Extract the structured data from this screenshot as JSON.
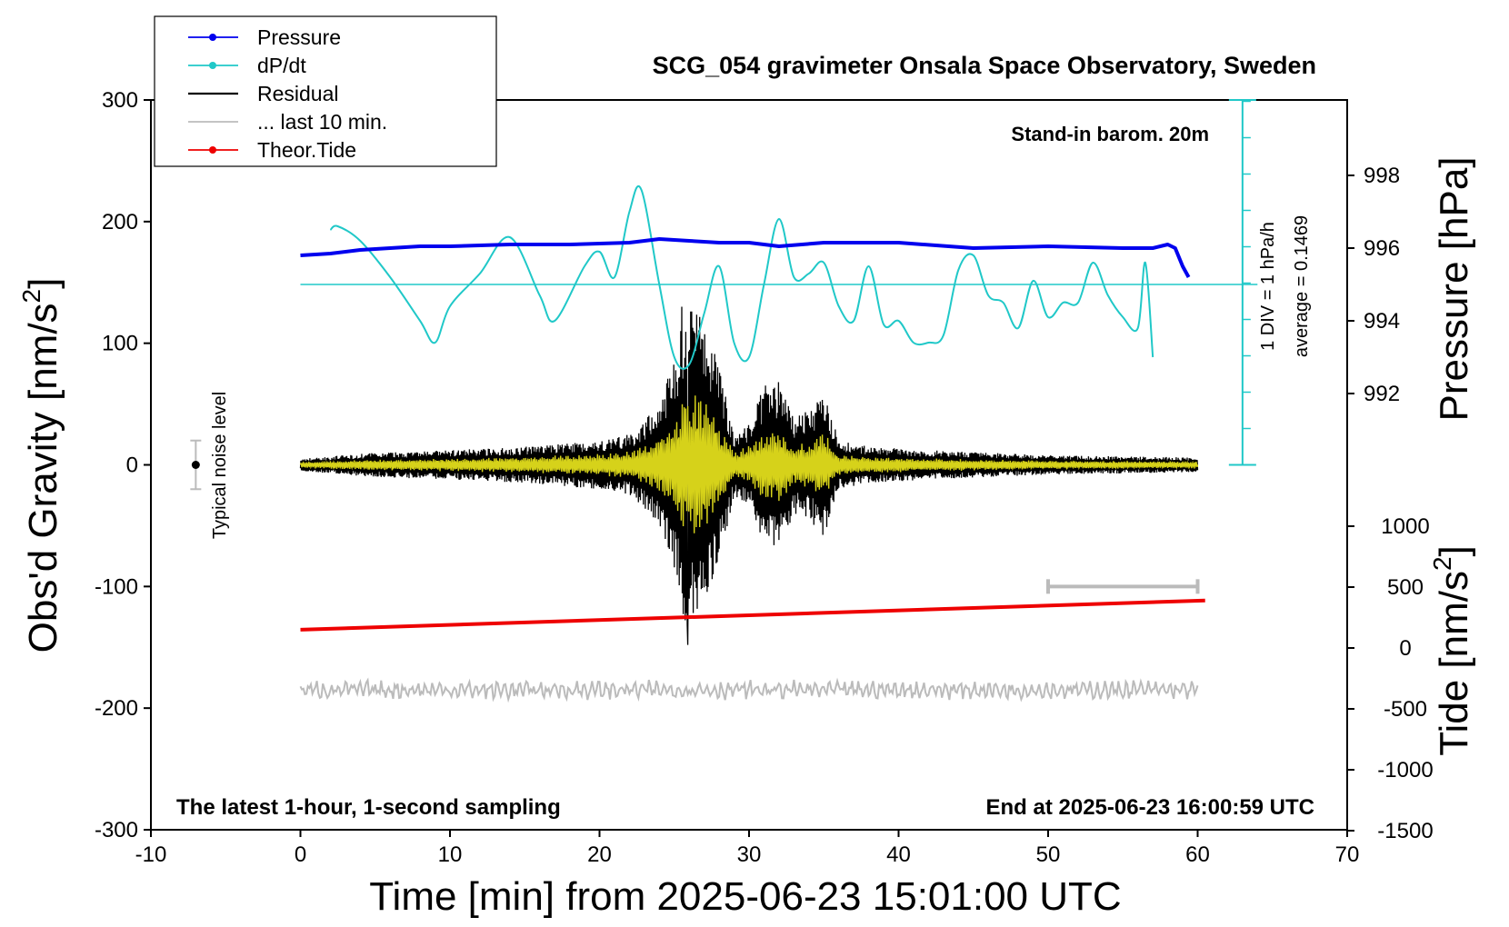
{
  "chart_data": {
    "type": "line",
    "title": "SCG_054 gravimeter Onsala Space Observatory, Sweden",
    "xlabel": "Time [min] from 2025-06-23 15:01:00 UTC",
    "ylabel_left": "Obs'd Gravity [nm/s",
    "ylabel_left_sup": "2",
    "ylabel_left_end": "]",
    "ylabel_right_pressure": "Pressure [hPa]",
    "ylabel_right_tide": "Tide [nm/s",
    "ylabel_right_tide_sup": "2",
    "ylabel_right_tide_end": "]",
    "xlim": [
      -10,
      70
    ],
    "ylim": [
      -300,
      300
    ],
    "x_ticks": [
      "-10",
      "0",
      "10",
      "20",
      "30",
      "40",
      "50",
      "60",
      "70"
    ],
    "y_ticks": [
      "-300",
      "-200",
      "-100",
      "0",
      "100",
      "200",
      "300"
    ],
    "pressure_ticks": [
      "992",
      "994",
      "996",
      "998"
    ],
    "tide_ticks": [
      "-1500",
      "-1000",
      "-500",
      "0",
      "500",
      "1000"
    ],
    "legend": [
      {
        "label": "Pressure",
        "color": "#0000ee",
        "marker": true
      },
      {
        "label": "dP/dt",
        "color": "#20c8c8",
        "marker": true
      },
      {
        "label": "Residual",
        "color": "#000000",
        "marker": false
      },
      {
        "label": "... last 10 min.",
        "color": "#bbbbbb",
        "marker": false
      },
      {
        "label": "Theor.Tide",
        "color": "#ee0000",
        "marker": true
      }
    ],
    "annotations": {
      "barometer": "Stand-in barom. 20m",
      "latest": "The latest 1-hour, 1-second sampling",
      "end": "End at 2025-06-23 16:00:59 UTC",
      "noise": "Typical noise level",
      "div": "1 DIV = 1 hPa/h",
      "average": "average = 0.1469"
    },
    "pressure_hpa": {
      "x": [
        0,
        2,
        4,
        6,
        8,
        10,
        14,
        18,
        22,
        24,
        26,
        28,
        30,
        32,
        35,
        40,
        45,
        50,
        55,
        57,
        58,
        58.5,
        59,
        59.4
      ],
      "y": [
        995.8,
        995.85,
        995.95,
        996.0,
        996.05,
        996.05,
        996.1,
        996.1,
        996.15,
        996.25,
        996.2,
        996.15,
        996.15,
        996.05,
        996.15,
        996.15,
        996.0,
        996.05,
        996.0,
        996.0,
        996.1,
        996.0,
        995.5,
        995.2
      ]
    },
    "dpdt_hpa_per_h": {
      "x": [
        2,
        2.5,
        4,
        6,
        8,
        9,
        10,
        12,
        14,
        16,
        17,
        19,
        20,
        21,
        22,
        22.8,
        24,
        25,
        26,
        27,
        28,
        29,
        30,
        31,
        32,
        33,
        34,
        35,
        36,
        37,
        38,
        39,
        40,
        41,
        42,
        43,
        44,
        45,
        46,
        47,
        48,
        49,
        50,
        51,
        52,
        53,
        54,
        55,
        56,
        56.5,
        57
      ],
      "y": [
        1.5,
        1.6,
        1.2,
        0.2,
        -1.0,
        -1.6,
        -0.6,
        0.3,
        1.3,
        -0.3,
        -1.0,
        0.5,
        0.9,
        0.2,
        2.0,
        2.6,
        0.0,
        -2.0,
        -2.2,
        -0.8,
        0.5,
        -1.6,
        -2.0,
        0.0,
        1.8,
        0.2,
        0.3,
        0.6,
        -0.6,
        -1.0,
        0.5,
        -1.1,
        -1.0,
        -1.6,
        -1.6,
        -1.4,
        0.4,
        0.8,
        -0.3,
        -0.5,
        -1.2,
        0.1,
        -0.9,
        -0.5,
        -0.5,
        0.6,
        -0.3,
        -0.9,
        -1.2,
        0.6,
        -2.0
      ],
      "zero_line_hpa_per_h": 0
    },
    "residual_envelope": {
      "x": [
        0,
        5,
        10,
        15,
        18,
        20,
        22,
        23,
        24,
        25,
        25.5,
        26,
        27,
        28,
        29,
        30,
        31,
        32,
        33,
        34,
        35,
        36,
        38,
        42,
        46,
        50,
        55,
        60
      ],
      "amplitude": [
        5,
        10,
        12,
        15,
        18,
        20,
        25,
        35,
        55,
        85,
        120,
        140,
        120,
        80,
        25,
        35,
        65,
        70,
        40,
        45,
        60,
        20,
        15,
        12,
        10,
        8,
        7,
        6
      ],
      "peak_max": 130,
      "peak_min": -148
    },
    "theoretical_tide_nm_s2": {
      "x": [
        0,
        60.5
      ],
      "y": [
        150,
        390
      ]
    },
    "last_10_min_nm_s2": {
      "center": -185,
      "amplitude": 7,
      "x_range": [
        0,
        60
      ]
    },
    "last_10_min_bar": {
      "x": [
        50,
        60
      ],
      "y": -100
    },
    "noise_level": {
      "x": -7,
      "y": 0,
      "err": 20
    }
  }
}
